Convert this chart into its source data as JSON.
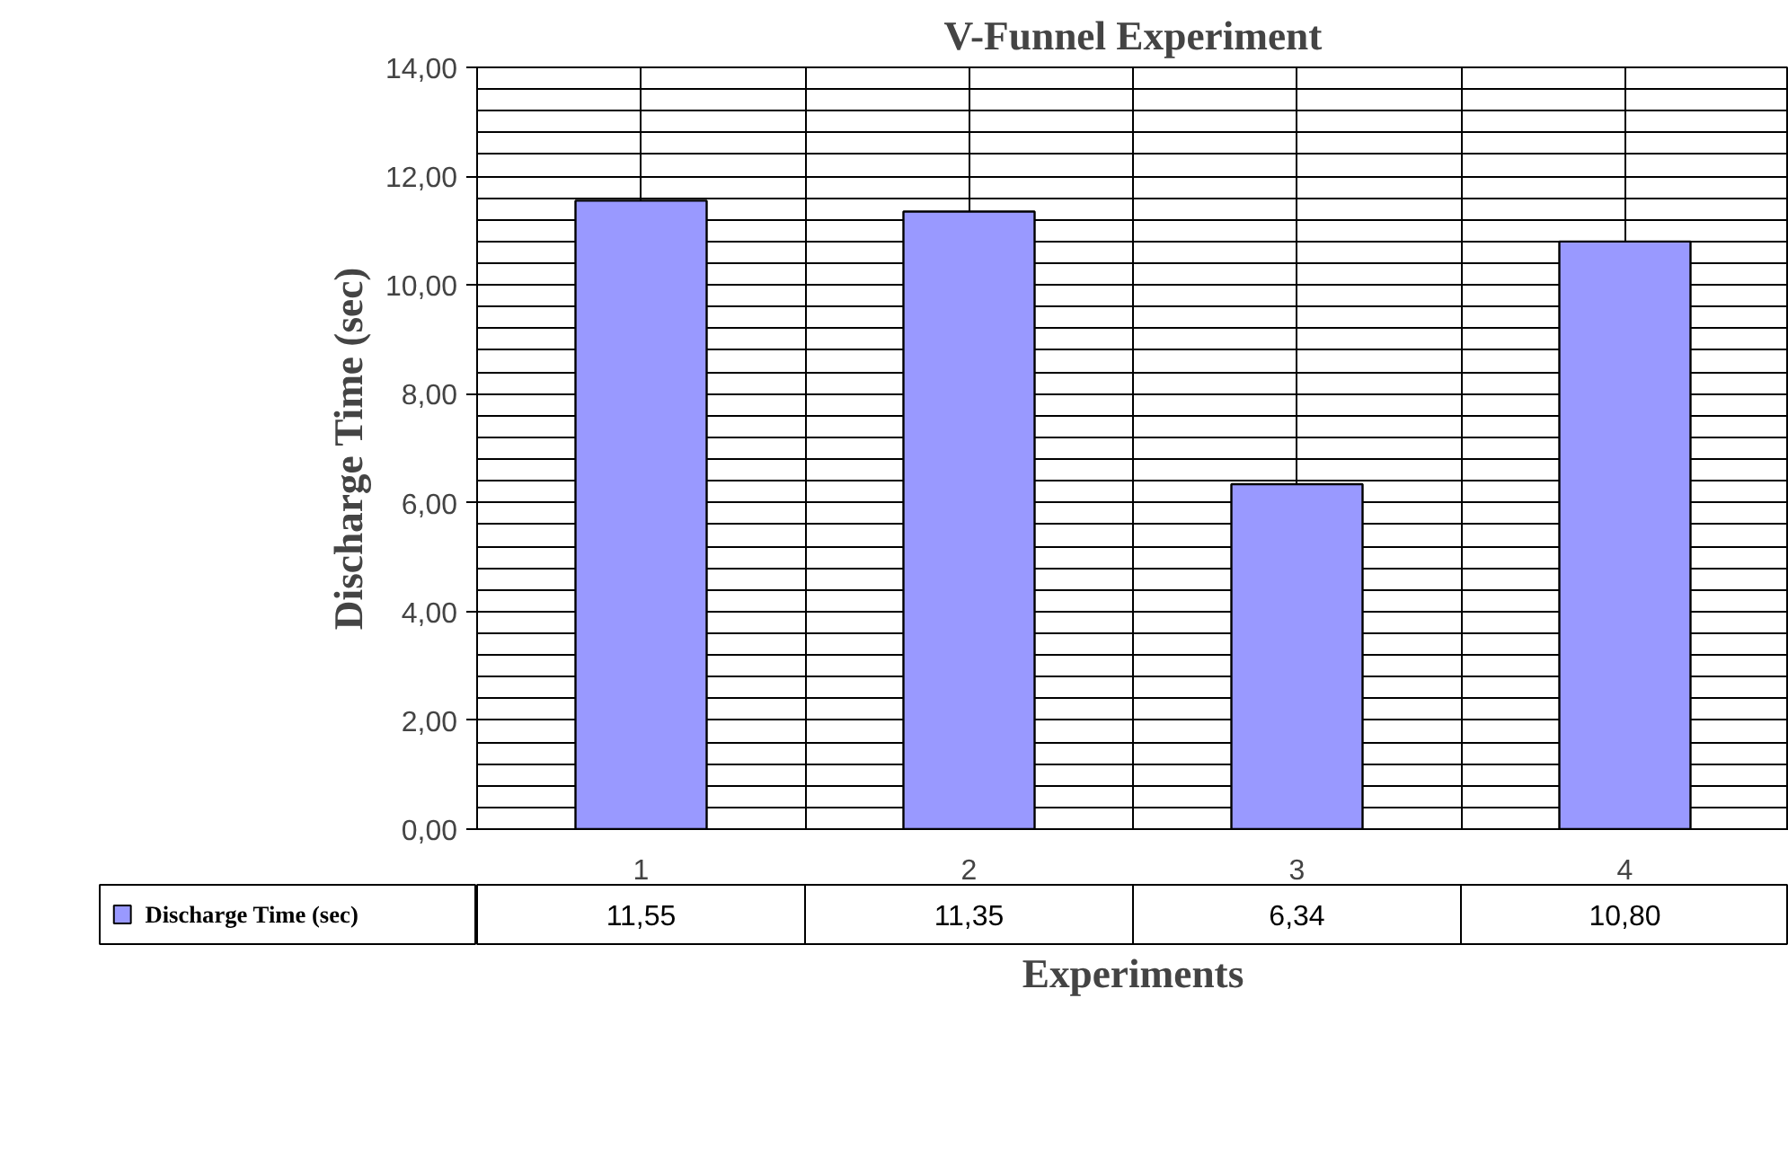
{
  "chart_data": {
    "type": "bar",
    "title": "V-Funnel Experiment",
    "xlabel": "Experiments",
    "ylabel": "Discharge Time (sec)",
    "categories": [
      "1",
      "2",
      "3",
      "4"
    ],
    "series": [
      {
        "name": "Discharge Time (sec)",
        "color": "#9999ff",
        "values": [
          11.55,
          11.35,
          6.34,
          10.8
        ],
        "value_labels": [
          "11,55",
          "11,35",
          "6,34",
          "10,80"
        ]
      }
    ],
    "ylim": [
      0,
      14
    ],
    "yticks": [
      {
        "value": 0,
        "label": "0,00"
      },
      {
        "value": 2,
        "label": "2,00"
      },
      {
        "value": 4,
        "label": "4,00"
      },
      {
        "value": 6,
        "label": "6,00"
      },
      {
        "value": 8,
        "label": "8,00"
      },
      {
        "value": 10,
        "label": "10,00"
      },
      {
        "value": 12,
        "label": "12,00"
      },
      {
        "value": 14,
        "label": "14,00"
      }
    ],
    "grid": true,
    "legend": "bottom left"
  }
}
